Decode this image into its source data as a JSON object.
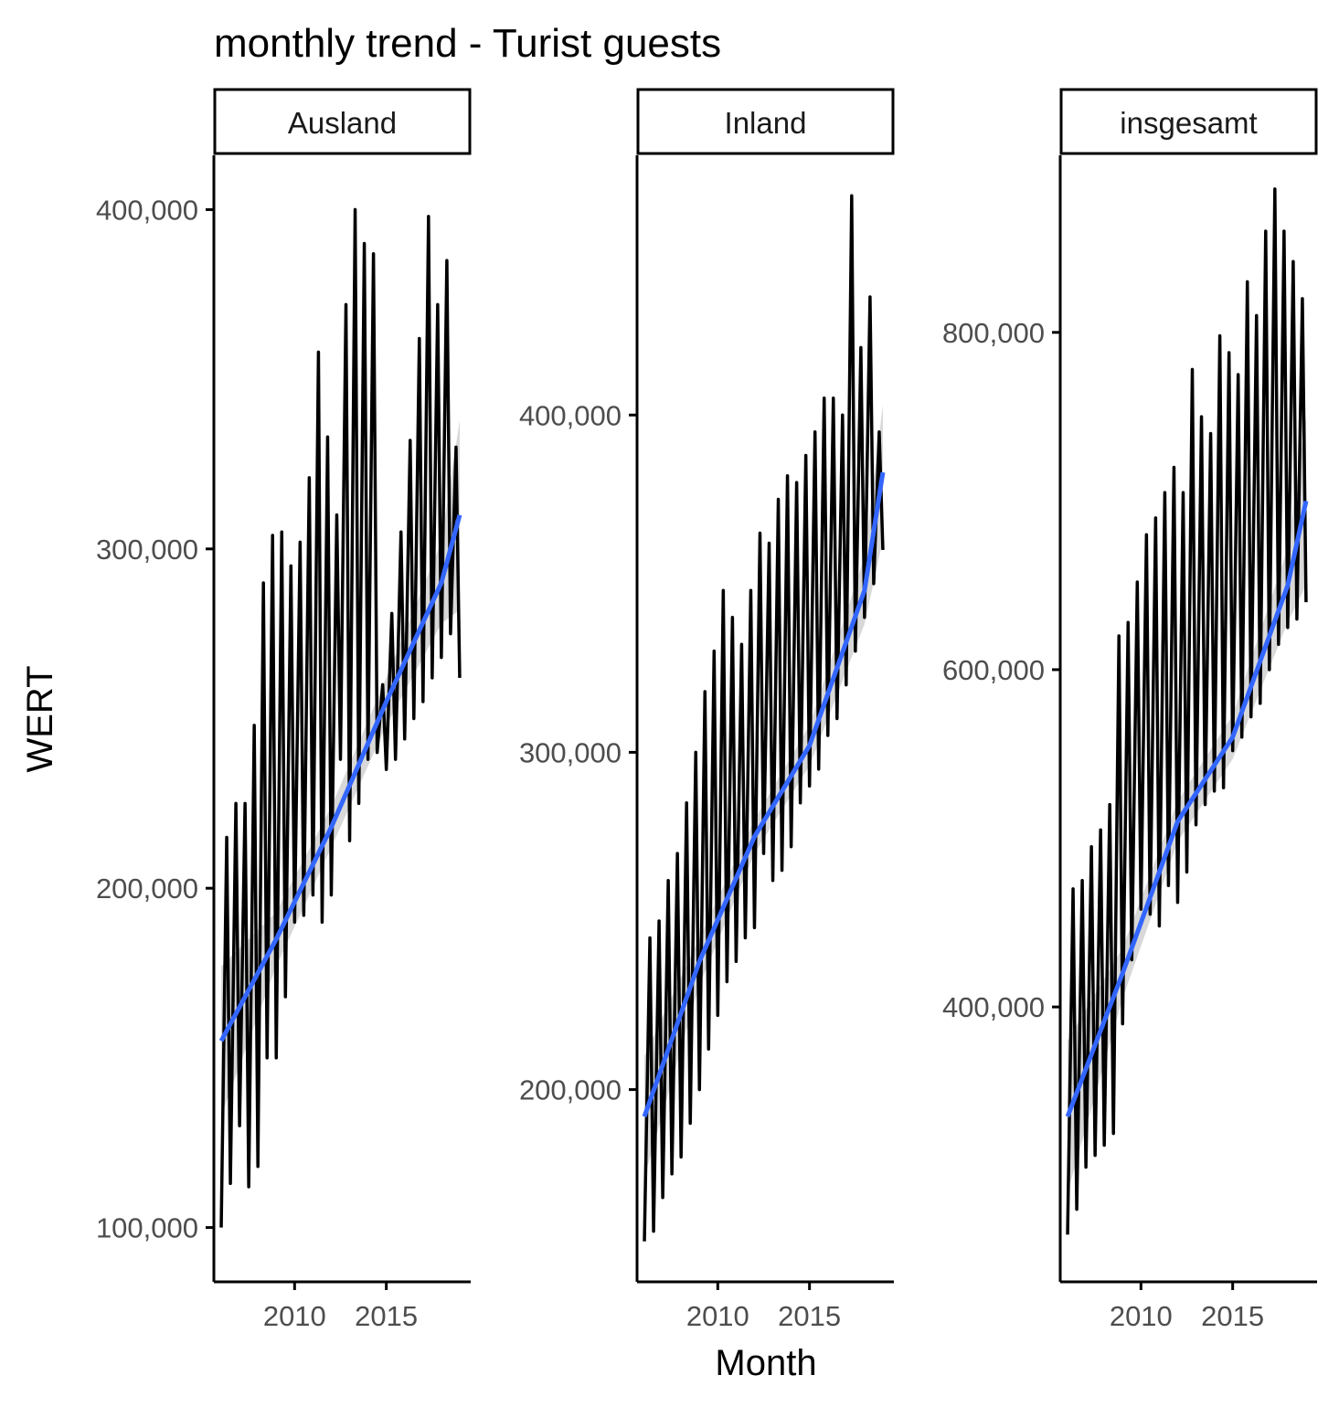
{
  "chart_data": {
    "type": "line",
    "title": "monthly trend - Turist guests",
    "xlabel": "Month",
    "ylabel": "WERT",
    "grid": false,
    "x_ticks": [
      2010,
      2015
    ],
    "smooth_color": "#3366FF",
    "line_color": "#000000",
    "band_color": "#BEBEBE",
    "panels": [
      {
        "name": "Ausland",
        "y_ticks": [
          100000,
          200000,
          300000,
          400000
        ],
        "y_tick_labels": [
          "100,000",
          "200,000",
          "300,000",
          "400,000"
        ],
        "ylim": [
          84000,
          416000
        ],
        "x": [
          2006.0,
          2006.3,
          2006.5,
          2006.8,
          2007.0,
          2007.3,
          2007.5,
          2007.8,
          2008.0,
          2008.3,
          2008.5,
          2008.8,
          2009.0,
          2009.3,
          2009.5,
          2009.8,
          2010.0,
          2010.3,
          2010.5,
          2010.8,
          2011.0,
          2011.3,
          2011.5,
          2011.8,
          2012.0,
          2012.3,
          2012.5,
          2012.8,
          2013.0,
          2013.3,
          2013.5,
          2013.8,
          2014.0,
          2014.3,
          2014.5,
          2014.8,
          2015.0,
          2015.3,
          2015.5,
          2015.8,
          2016.0,
          2016.3,
          2016.5,
          2016.8,
          2017.0,
          2017.3,
          2017.5,
          2017.8,
          2018.0,
          2018.3,
          2018.5,
          2018.8,
          2019.0
        ],
        "values": [
          100000,
          215000,
          113000,
          225000,
          130000,
          225000,
          112000,
          248000,
          118000,
          290000,
          150000,
          304000,
          150000,
          305000,
          168000,
          295000,
          190000,
          302000,
          192000,
          321000,
          198000,
          358000,
          190000,
          333000,
          198000,
          310000,
          238000,
          372000,
          214000,
          400000,
          225000,
          390000,
          238000,
          387000,
          240000,
          260000,
          235000,
          281000,
          238000,
          305000,
          244000,
          332000,
          250000,
          362000,
          255000,
          398000,
          262000,
          372000,
          268000,
          385000,
          275000,
          330000,
          262000
        ],
        "smooth_x": [
          2006.0,
          2009.0,
          2012.0,
          2015.0,
          2018.0,
          2019.0
        ],
        "smooth_y": [
          155000,
          185000,
          218000,
          255000,
          290000,
          310000
        ],
        "band_halfwidth": [
          22000,
          8000,
          6000,
          7000,
          12000,
          28000
        ]
      },
      {
        "name": "Inland",
        "y_ticks": [
          200000,
          300000,
          400000
        ],
        "y_tick_labels": [
          "200,000",
          "300,000",
          "400,000"
        ],
        "ylim": [
          143000,
          477000
        ],
        "x": [
          2006.0,
          2006.3,
          2006.5,
          2006.8,
          2007.0,
          2007.3,
          2007.5,
          2007.8,
          2008.0,
          2008.3,
          2008.5,
          2008.8,
          2009.0,
          2009.3,
          2009.5,
          2009.8,
          2010.0,
          2010.3,
          2010.5,
          2010.8,
          2011.0,
          2011.3,
          2011.5,
          2011.8,
          2012.0,
          2012.3,
          2012.5,
          2012.8,
          2013.0,
          2013.3,
          2013.5,
          2013.8,
          2014.0,
          2014.3,
          2014.5,
          2014.8,
          2015.0,
          2015.3,
          2015.5,
          2015.8,
          2016.0,
          2016.3,
          2016.5,
          2016.8,
          2017.0,
          2017.3,
          2017.5,
          2017.8,
          2018.0,
          2018.3,
          2018.5,
          2018.8,
          2019.0
        ],
        "values": [
          155000,
          245000,
          158000,
          250000,
          168000,
          262000,
          175000,
          270000,
          180000,
          285000,
          190000,
          300000,
          200000,
          318000,
          212000,
          330000,
          222000,
          348000,
          232000,
          340000,
          238000,
          332000,
          245000,
          348000,
          248000,
          365000,
          270000,
          362000,
          262000,
          375000,
          265000,
          382000,
          272000,
          380000,
          285000,
          388000,
          290000,
          395000,
          295000,
          405000,
          305000,
          405000,
          310000,
          400000,
          320000,
          465000,
          330000,
          420000,
          340000,
          435000,
          350000,
          395000,
          360000
        ],
        "smooth_x": [
          2006.0,
          2009.0,
          2012.0,
          2015.0,
          2018.0,
          2019.0
        ],
        "smooth_y": [
          192000,
          238000,
          275000,
          302000,
          348000,
          383000
        ],
        "band_halfwidth": [
          18000,
          7000,
          5000,
          6000,
          10000,
          20000
        ]
      },
      {
        "name": "insgesamt",
        "y_ticks": [
          400000,
          600000,
          800000
        ],
        "y_tick_labels": [
          "400,000",
          "600,000",
          "800,000"
        ],
        "ylim": [
          237000,
          905000
        ],
        "x": [
          2006.0,
          2006.3,
          2006.5,
          2006.8,
          2007.0,
          2007.3,
          2007.5,
          2007.8,
          2008.0,
          2008.3,
          2008.5,
          2008.8,
          2009.0,
          2009.3,
          2009.5,
          2009.8,
          2010.0,
          2010.3,
          2010.5,
          2010.8,
          2011.0,
          2011.3,
          2011.5,
          2011.8,
          2012.0,
          2012.3,
          2012.5,
          2012.8,
          2013.0,
          2013.3,
          2013.5,
          2013.8,
          2014.0,
          2014.3,
          2014.5,
          2014.8,
          2015.0,
          2015.3,
          2015.5,
          2015.8,
          2016.0,
          2016.3,
          2016.5,
          2016.8,
          2017.0,
          2017.3,
          2017.5,
          2017.8,
          2018.0,
          2018.3,
          2018.5,
          2018.8,
          2019.0
        ],
        "values": [
          265000,
          470000,
          280000,
          475000,
          305000,
          495000,
          312000,
          505000,
          318000,
          520000,
          325000,
          620000,
          390000,
          628000,
          428000,
          652000,
          458000,
          680000,
          455000,
          690000,
          448000,
          705000,
          472000,
          720000,
          462000,
          705000,
          480000,
          778000,
          508000,
          750000,
          520000,
          740000,
          528000,
          798000,
          530000,
          788000,
          552000,
          775000,
          560000,
          830000,
          572000,
          810000,
          580000,
          860000,
          600000,
          885000,
          615000,
          860000,
          625000,
          842000,
          630000,
          820000,
          640000
        ],
        "smooth_x": [
          2006.0,
          2009.0,
          2012.0,
          2015.0,
          2018.0,
          2019.0
        ],
        "smooth_y": [
          335000,
          420000,
          510000,
          560000,
          650000,
          700000
        ],
        "band_halfwidth": [
          45000,
          15000,
          12000,
          13000,
          22000,
          50000
        ]
      }
    ]
  }
}
